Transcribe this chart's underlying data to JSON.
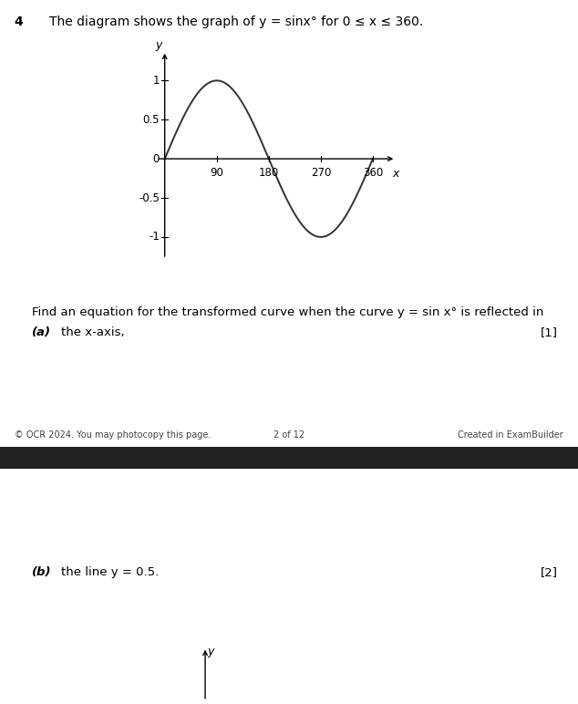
{
  "question_number": "4",
  "header_text": "The diagram shows the graph of y = sinx° for 0 ≤ x ≤ 360.",
  "find_text": "Find an equation for the transformed curve when the curve y = sin x° is reflected in",
  "part_a_label": "(a)",
  "part_a_text": "  the x-axis,",
  "part_a_mark": "[1]",
  "part_b_label": "(b)",
  "part_b_text": "  the line y = 0.5.",
  "part_b_mark": "[2]",
  "footer_left": "© OCR 2024. You may photocopy this page.",
  "footer_center": "2 of 12",
  "footer_right": "Created in ExamBuilder",
  "x_ticks": [
    90,
    180,
    270,
    360
  ],
  "y_tick_vals": [
    -1,
    -0.5,
    0.5,
    1
  ],
  "y_tick_labels": [
    "-1",
    "-0.5",
    "0.5",
    "1"
  ],
  "curve_color": "#333333",
  "axis_color": "#000000",
  "bg_color": "#ffffff",
  "fig_width": 6.34,
  "fig_height": 7.72,
  "separator_color": "#222222",
  "y_axis_label": "y",
  "x_axis_label": "x"
}
